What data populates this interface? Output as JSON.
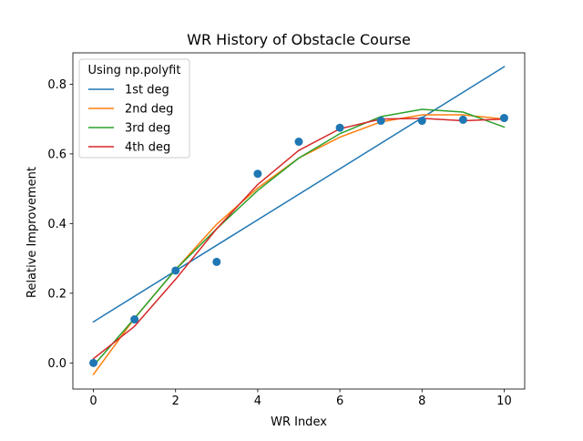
{
  "chart_data": {
    "type": "scatter",
    "title": "WR History of Obstacle Course",
    "xlabel": "WR Index",
    "ylabel": "Relative Improvement",
    "xlim": [
      -0.5,
      10.5
    ],
    "ylim": [
      -0.075,
      0.89
    ],
    "xticks": [
      0,
      2,
      4,
      6,
      8,
      10
    ],
    "xtick_labels": [
      "0",
      "2",
      "4",
      "6",
      "8",
      "10"
    ],
    "yticks": [
      0.0,
      0.2,
      0.4,
      0.6,
      0.8
    ],
    "ytick_labels": [
      "0.0",
      "0.2",
      "0.4",
      "0.6",
      "0.8"
    ],
    "grid": false,
    "legend": {
      "title": "Using np.polyfit",
      "placement": "upper-left",
      "entries": [
        "1st deg",
        "2nd deg",
        "3rd deg",
        "4th deg"
      ]
    },
    "points": {
      "x": [
        0,
        1,
        2,
        3,
        4,
        5,
        6,
        7,
        8,
        9,
        10
      ],
      "y": [
        0.0,
        0.125,
        0.265,
        0.29,
        0.543,
        0.635,
        0.675,
        0.695,
        0.695,
        0.698,
        0.703
      ],
      "color": "#1f77b4"
    },
    "series": [
      {
        "name": "1st deg",
        "color": "#1f77b4",
        "x": [
          0,
          10
        ],
        "y": [
          0.118,
          0.85
        ]
      },
      {
        "name": "2nd deg",
        "color": "#ff7f0e",
        "x": [
          0,
          1,
          2,
          3,
          4,
          5,
          6,
          7,
          8,
          9,
          10
        ],
        "y": [
          -0.033,
          0.128,
          0.268,
          0.398,
          0.502,
          0.588,
          0.648,
          0.692,
          0.712,
          0.712,
          0.7
        ]
      },
      {
        "name": "3rd deg",
        "color": "#2ca02c",
        "x": [
          0,
          1,
          2,
          3,
          4,
          5,
          6,
          7,
          8,
          9,
          10
        ],
        "y": [
          -0.008,
          0.128,
          0.268,
          0.385,
          0.495,
          0.588,
          0.658,
          0.707,
          0.728,
          0.72,
          0.677
        ]
      },
      {
        "name": "4th deg",
        "color": "#d62728",
        "x": [
          0,
          1,
          2,
          3,
          4,
          5,
          6,
          7,
          8,
          9,
          10
        ],
        "y": [
          0.012,
          0.105,
          0.24,
          0.385,
          0.512,
          0.61,
          0.672,
          0.7,
          0.702,
          0.695,
          0.7
        ]
      }
    ]
  }
}
